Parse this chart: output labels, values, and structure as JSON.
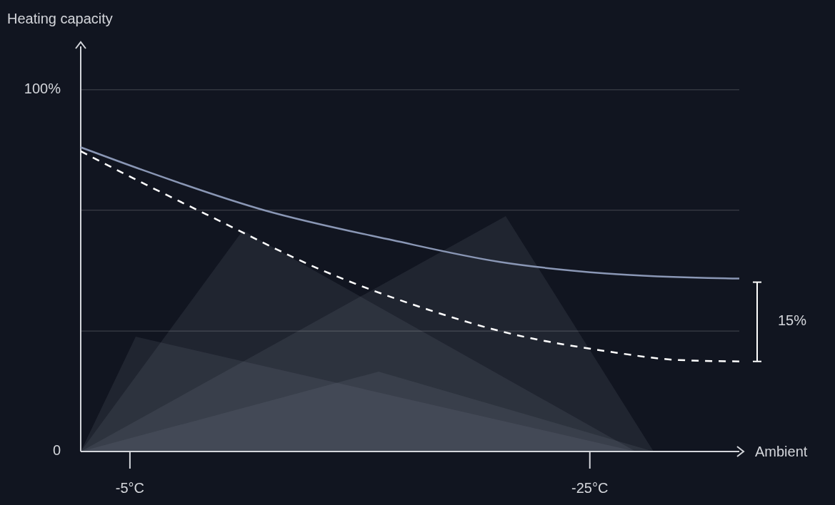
{
  "chart_data": {
    "type": "line",
    "ylabel": "Heating capacity",
    "xlabel": "Ambient",
    "xlim": [
      -2.86,
      -31.5
    ],
    "xticks": [
      {
        "value": -5,
        "label": "-5°C"
      },
      {
        "value": -25,
        "label": "-25°C"
      }
    ],
    "ylim": [
      0,
      112
    ],
    "yticks": [
      {
        "value": 0,
        "label": "0"
      },
      {
        "value": 33.3,
        "label": null
      },
      {
        "value": 66.7,
        "label": null
      },
      {
        "value": 100,
        "label": "100%"
      }
    ],
    "grid": "y",
    "series": [
      {
        "color": "#8a97b5",
        "line_style": "solid",
        "x": [
          -2.86,
          -5.56,
          -10.84,
          -16.43,
          -21.09,
          -25.75,
          -31.5
        ],
        "values": [
          84.1,
          77.8,
          66.7,
          58.4,
          52.4,
          49.2,
          47.8
        ]
      },
      {
        "color": "#ffffff",
        "line_style": "dashed",
        "x": [
          -2.86,
          -5.56,
          -8.66,
          -13.32,
          -17.98,
          -21.09,
          -25.75,
          -28.85,
          -31.5
        ],
        "values": [
          83.0,
          74.2,
          64.5,
          50.2,
          39.2,
          33.3,
          27.7,
          25.3,
          24.9
        ]
      }
    ],
    "annotations": [
      "15%"
    ]
  }
}
